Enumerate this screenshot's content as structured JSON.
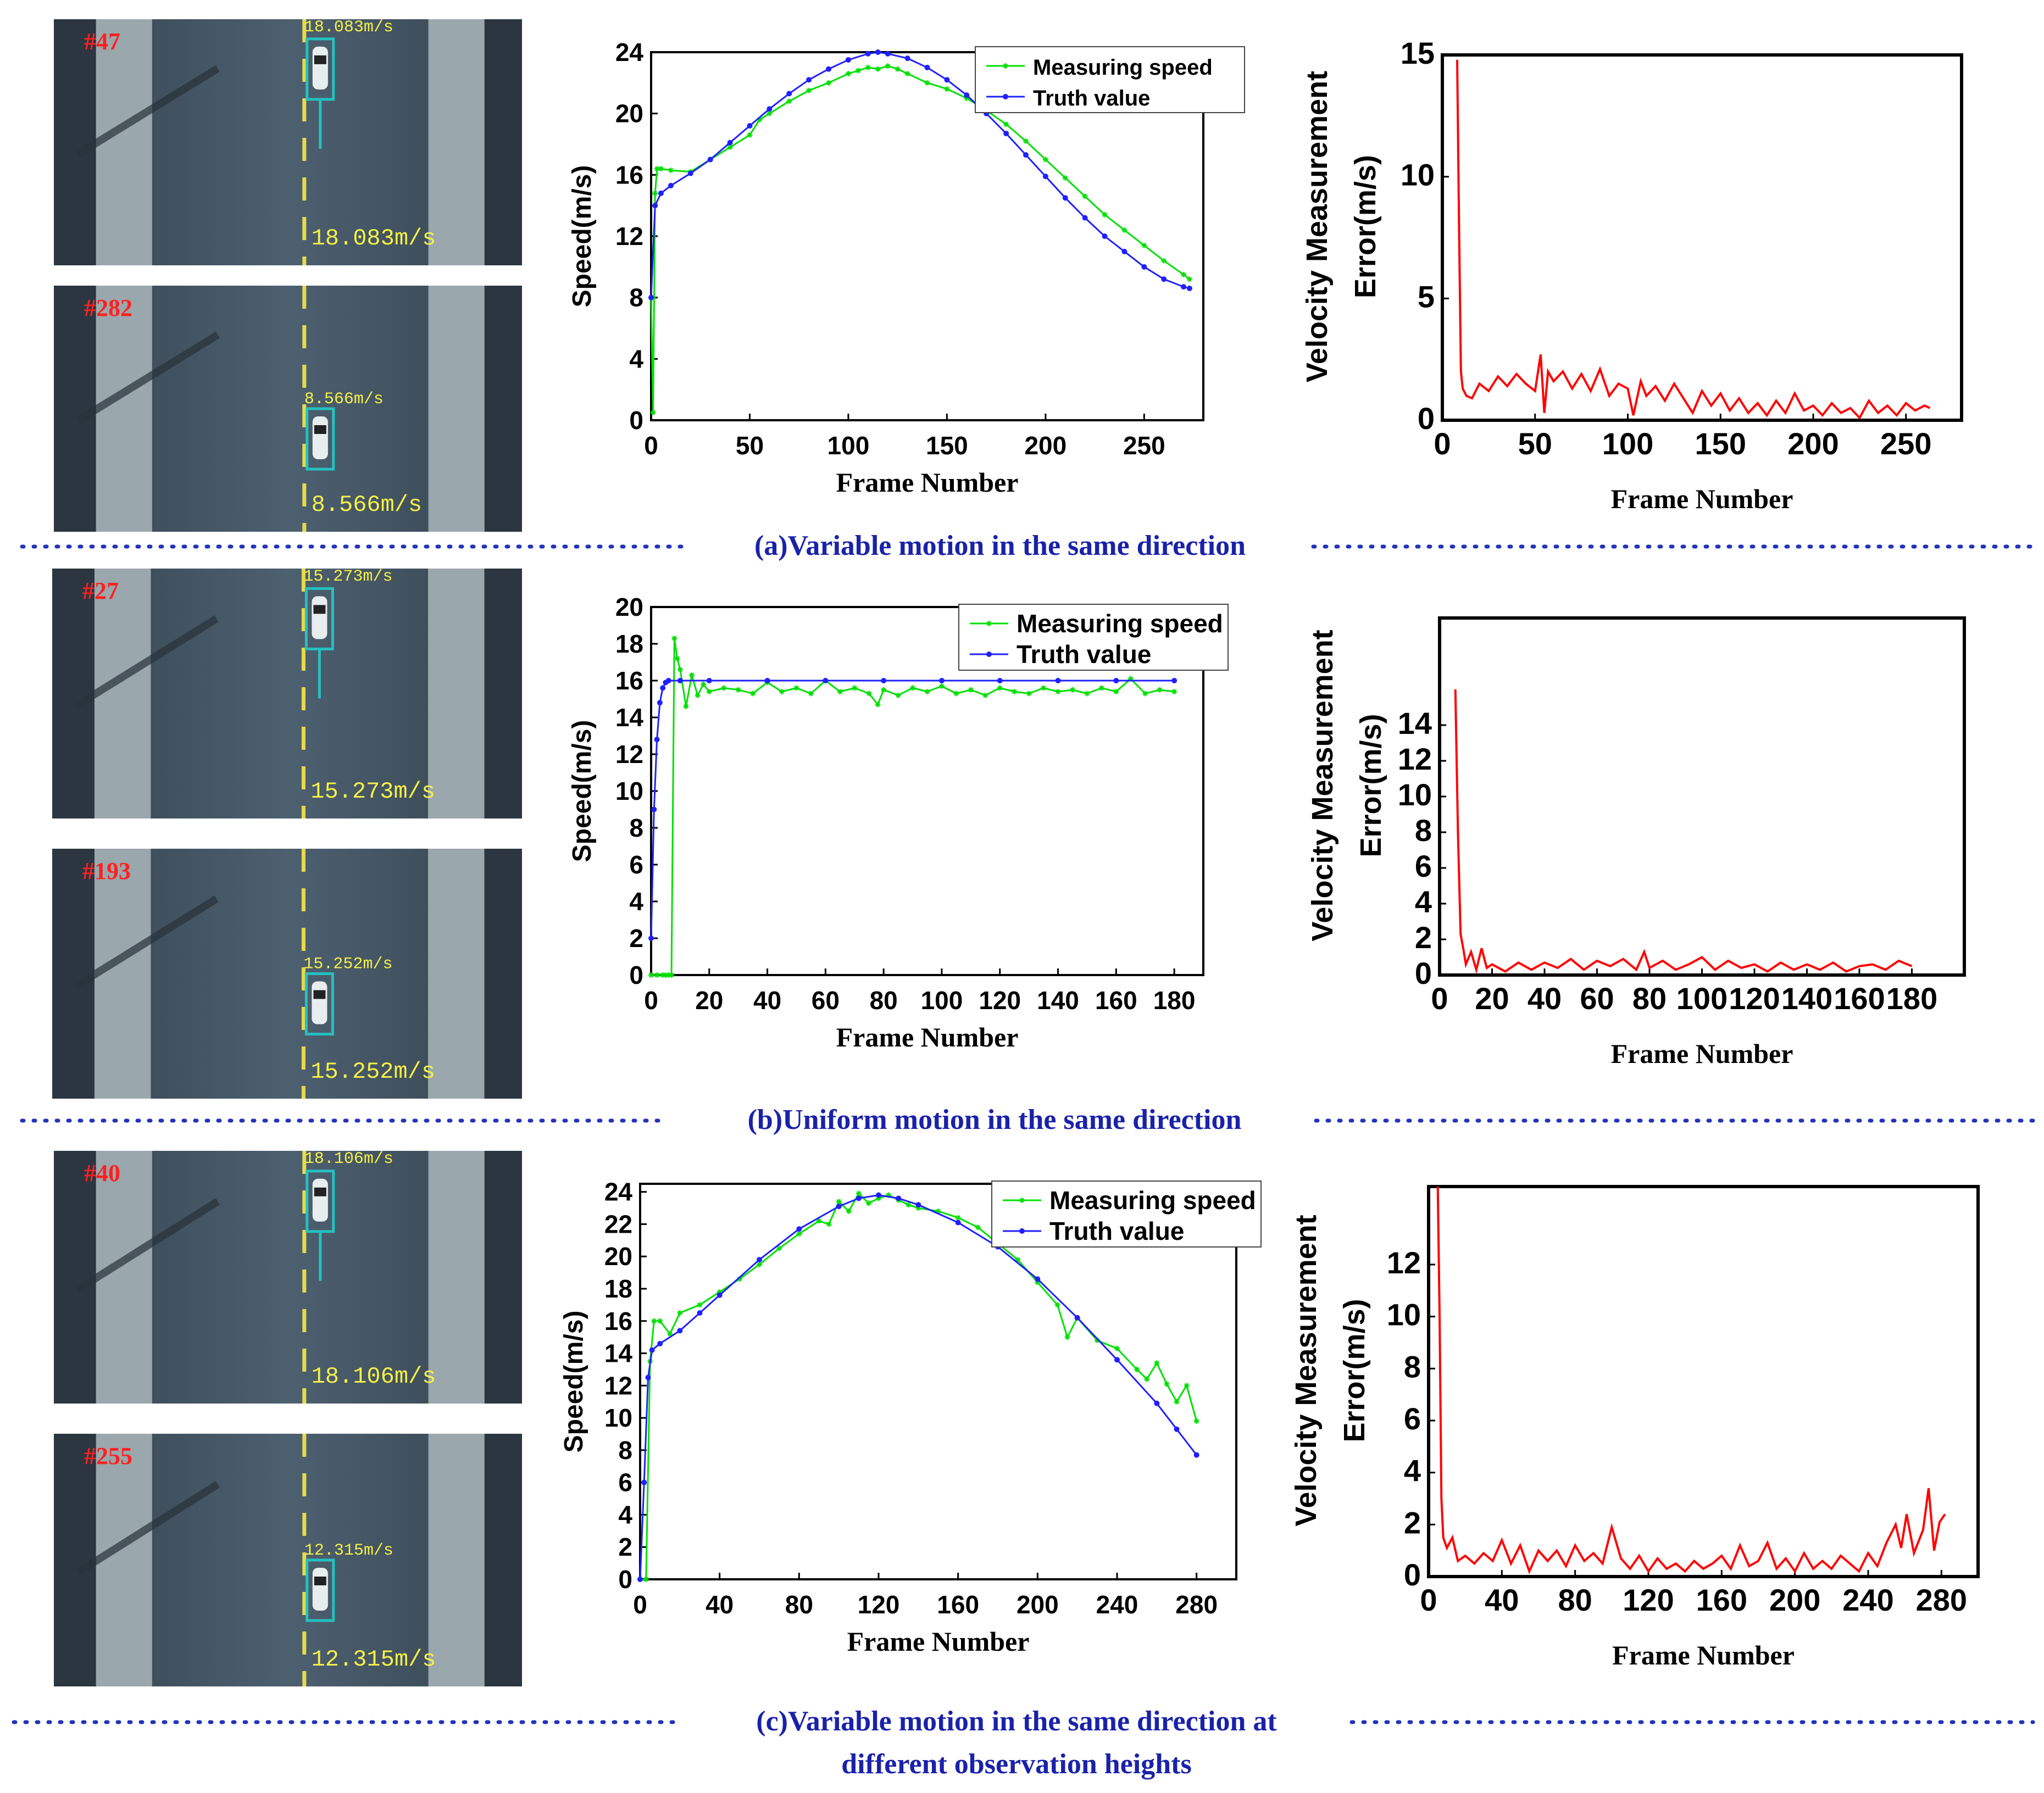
{
  "rows": [
    {
      "caption": "(a)Variable motion in the same direction",
      "photos": [
        {
          "frame": "#47",
          "top_speed": "18.083m/s",
          "bottom_speed": "18.083m/s"
        },
        {
          "frame": "#282",
          "top_speed": "8.566m/s",
          "bottom_speed": "8.566m/s"
        }
      ]
    },
    {
      "caption": "(b)Uniform  motion in the same direction",
      "photos": [
        {
          "frame": "#27",
          "top_speed": "15.273m/s",
          "bottom_speed": "15.273m/s"
        },
        {
          "frame": "#193",
          "top_speed": "15.252m/s",
          "bottom_speed": "15.252m/s"
        }
      ]
    },
    {
      "caption": "(c)Variable motion in the same direction at different observation heights",
      "photos": [
        {
          "frame": "#40",
          "top_speed": "18.106m/s",
          "bottom_speed": "18.106m/s"
        },
        {
          "frame": "#255",
          "top_speed": "12.315m/s",
          "bottom_speed": "12.315m/s"
        }
      ]
    }
  ],
  "chart_data": [
    {
      "id": "a-speed",
      "type": "line",
      "xlabel": "Frame Number",
      "ylabel": "Speed(m/s)",
      "xlim": [
        0,
        280
      ],
      "ylim": [
        0,
        24
      ],
      "xticks": [
        0,
        50,
        100,
        150,
        200,
        250
      ],
      "yticks": [
        0,
        4,
        8,
        12,
        16,
        20,
        24
      ],
      "legend": {
        "position": "top-right",
        "entries": [
          "Measuring speed",
          "Truth value"
        ]
      },
      "series": [
        {
          "name": "Measuring speed",
          "color": "#00e000",
          "marker": "star",
          "x": [
            0,
            1,
            2,
            3,
            5,
            10,
            20,
            30,
            40,
            50,
            55,
            60,
            70,
            80,
            90,
            100,
            105,
            110,
            115,
            120,
            125,
            130,
            140,
            150,
            160,
            170,
            180,
            190,
            200,
            210,
            220,
            230,
            240,
            250,
            260,
            270,
            273
          ],
          "y": [
            8,
            0.5,
            14.8,
            16.4,
            16.4,
            16.3,
            16.2,
            17.0,
            17.8,
            18.6,
            19.6,
            20.0,
            20.8,
            21.5,
            22.0,
            22.6,
            22.8,
            23.0,
            22.9,
            23.1,
            22.9,
            22.6,
            22.0,
            21.6,
            21.0,
            20.2,
            19.3,
            18.2,
            17.0,
            15.8,
            14.6,
            13.4,
            12.4,
            11.4,
            10.4,
            9.5,
            9.2
          ]
        },
        {
          "name": "Truth value",
          "color": "#2020ff",
          "marker": "dot",
          "x": [
            0,
            2,
            5,
            10,
            20,
            30,
            40,
            50,
            60,
            70,
            80,
            90,
            100,
            110,
            115,
            120,
            130,
            140,
            150,
            160,
            170,
            180,
            190,
            200,
            210,
            220,
            230,
            240,
            250,
            260,
            270,
            273
          ],
          "y": [
            8.0,
            14.0,
            14.8,
            15.3,
            16.1,
            17.0,
            18.1,
            19.2,
            20.3,
            21.3,
            22.2,
            22.9,
            23.5,
            23.9,
            24.0,
            23.9,
            23.6,
            23.0,
            22.2,
            21.2,
            20.0,
            18.7,
            17.3,
            15.9,
            14.5,
            13.2,
            12.0,
            11.0,
            10.0,
            9.2,
            8.7,
            8.6
          ]
        }
      ]
    },
    {
      "id": "a-error",
      "type": "line",
      "xlabel": "Frame Number",
      "ylabel": "Velocity Measurement Error(m/s)",
      "xlim": [
        0,
        280
      ],
      "ylim": [
        0,
        15
      ],
      "xticks": [
        0,
        50,
        100,
        150,
        200,
        250
      ],
      "yticks": [
        0,
        5,
        10,
        15
      ],
      "series": [
        {
          "name": "Error",
          "color": "#ff0000",
          "x": [
            8,
            9,
            10,
            11,
            13,
            16,
            20,
            25,
            30,
            35,
            40,
            45,
            50,
            53,
            55,
            57,
            60,
            65,
            70,
            75,
            80,
            85,
            90,
            95,
            100,
            103,
            107,
            110,
            115,
            120,
            125,
            130,
            135,
            140,
            145,
            150,
            155,
            160,
            165,
            170,
            175,
            180,
            185,
            190,
            195,
            200,
            205,
            210,
            215,
            220,
            225,
            230,
            235,
            240,
            245,
            250,
            255,
            260,
            263
          ],
          "y": [
            14.8,
            8,
            2,
            1.3,
            1.0,
            0.9,
            1.5,
            1.2,
            1.8,
            1.4,
            1.9,
            1.5,
            1.2,
            2.7,
            0.3,
            2.0,
            1.6,
            2.0,
            1.3,
            1.9,
            1.2,
            2.1,
            1.0,
            1.5,
            1.3,
            0.2,
            1.6,
            1.0,
            1.4,
            0.8,
            1.5,
            0.9,
            0.3,
            1.2,
            0.6,
            1.1,
            0.4,
            0.9,
            0.3,
            0.7,
            0.2,
            0.8,
            0.3,
            1.1,
            0.4,
            0.6,
            0.2,
            0.7,
            0.3,
            0.5,
            0.1,
            0.8,
            0.3,
            0.6,
            0.2,
            0.7,
            0.4,
            0.6,
            0.5
          ]
        }
      ]
    },
    {
      "id": "b-speed",
      "type": "line",
      "xlabel": "Frame Number",
      "ylabel": "Speed(m/s)",
      "xlim": [
        0,
        190
      ],
      "ylim": [
        0,
        20
      ],
      "xticks": [
        0,
        20,
        40,
        60,
        80,
        100,
        120,
        140,
        160,
        180
      ],
      "yticks": [
        0,
        2,
        4,
        6,
        8,
        10,
        12,
        14,
        16,
        18,
        20
      ],
      "legend": {
        "position": "top-right",
        "entries": [
          "Measuring speed",
          "Truth value"
        ]
      },
      "series": [
        {
          "name": "Measuring speed",
          "color": "#00e000",
          "marker": "star",
          "x": [
            0,
            2,
            4,
            5,
            6,
            7,
            8,
            9,
            10,
            12,
            14,
            16,
            18,
            20,
            25,
            30,
            35,
            40,
            45,
            50,
            55,
            60,
            65,
            70,
            75,
            78,
            80,
            85,
            90,
            95,
            100,
            105,
            110,
            115,
            120,
            125,
            130,
            135,
            140,
            145,
            150,
            155,
            160,
            165,
            170,
            175,
            180
          ],
          "y": [
            0,
            0,
            0,
            0,
            0,
            0,
            18.3,
            17.2,
            16.6,
            14.6,
            16.3,
            15.2,
            15.8,
            15.4,
            15.6,
            15.5,
            15.3,
            15.9,
            15.4,
            15.6,
            15.3,
            16.0,
            15.4,
            15.6,
            15.3,
            14.7,
            15.5,
            15.2,
            15.6,
            15.4,
            15.7,
            15.3,
            15.5,
            15.2,
            15.6,
            15.4,
            15.3,
            15.6,
            15.4,
            15.5,
            15.3,
            15.6,
            15.4,
            16.1,
            15.3,
            15.5,
            15.4
          ]
        },
        {
          "name": "Truth value",
          "color": "#2020ff",
          "marker": "dot",
          "x": [
            0,
            1,
            2,
            3,
            4,
            5,
            6,
            10,
            20,
            40,
            60,
            80,
            100,
            120,
            140,
            160,
            180
          ],
          "y": [
            2,
            9,
            12.8,
            14.8,
            15.6,
            15.9,
            16.0,
            16.0,
            16.0,
            16.0,
            16.0,
            16.0,
            16.0,
            16.0,
            16.0,
            16.0,
            16.0
          ]
        }
      ]
    },
    {
      "id": "b-error",
      "type": "line",
      "xlabel": "Frame Number",
      "ylabel": "Velocity Measurement Error(m/s)",
      "xlim": [
        0,
        200
      ],
      "ylim": [
        0,
        20
      ],
      "xticks": [
        0,
        20,
        40,
        60,
        80,
        100,
        120,
        140,
        160,
        180
      ],
      "yticks": [
        0,
        2,
        4,
        6,
        8,
        10,
        12,
        14
      ],
      "series": [
        {
          "name": "Error",
          "color": "#ff0000",
          "x": [
            6,
            7,
            8,
            9,
            10,
            12,
            14,
            16,
            18,
            20,
            25,
            30,
            35,
            40,
            45,
            50,
            55,
            60,
            65,
            70,
            75,
            78,
            80,
            85,
            90,
            95,
            100,
            105,
            110,
            115,
            120,
            125,
            130,
            135,
            140,
            145,
            150,
            155,
            160,
            165,
            170,
            175,
            180
          ],
          "y": [
            16,
            8,
            2.3,
            1.5,
            0.6,
            1.3,
            0.3,
            1.5,
            0.4,
            0.6,
            0.2,
            0.7,
            0.3,
            0.7,
            0.4,
            0.9,
            0.3,
            0.8,
            0.5,
            0.9,
            0.3,
            1.3,
            0.4,
            0.8,
            0.3,
            0.6,
            1.0,
            0.3,
            0.8,
            0.4,
            0.6,
            0.2,
            0.7,
            0.3,
            0.6,
            0.3,
            0.7,
            0.2,
            0.5,
            0.6,
            0.3,
            0.8,
            0.5
          ]
        }
      ]
    },
    {
      "id": "c-speed",
      "type": "line",
      "xlabel": "Frame Number",
      "ylabel": "Speed(m/s)",
      "xlim": [
        0,
        300
      ],
      "ylim": [
        0,
        24.5
      ],
      "xticks": [
        0,
        40,
        80,
        120,
        160,
        200,
        240,
        280
      ],
      "yticks": [
        0,
        2,
        4,
        6,
        8,
        10,
        12,
        14,
        16,
        18,
        20,
        22,
        24
      ],
      "legend": {
        "position": "top-right",
        "entries": [
          "Measuring speed",
          "Truth value"
        ]
      },
      "series": [
        {
          "name": "Measuring speed",
          "color": "#00e000",
          "marker": "star",
          "x": [
            0,
            3,
            5,
            7,
            10,
            15,
            20,
            30,
            40,
            50,
            60,
            70,
            80,
            90,
            95,
            100,
            105,
            110,
            115,
            120,
            125,
            130,
            135,
            140,
            150,
            160,
            170,
            180,
            190,
            200,
            210,
            215,
            220,
            230,
            240,
            250,
            255,
            260,
            265,
            270,
            275,
            280
          ],
          "y": [
            0,
            0,
            13.5,
            16.0,
            16.0,
            15.2,
            16.5,
            17.0,
            17.8,
            18.6,
            19.5,
            20.5,
            21.4,
            22.2,
            22.0,
            23.4,
            22.8,
            23.9,
            23.3,
            23.6,
            23.8,
            23.5,
            23.2,
            23.0,
            22.8,
            22.4,
            21.8,
            20.8,
            19.8,
            18.4,
            17.0,
            15.0,
            16.2,
            14.8,
            14.3,
            13.0,
            12.4,
            13.4,
            12.1,
            11.0,
            12.0,
            9.8
          ]
        },
        {
          "name": "Truth value",
          "color": "#2020ff",
          "marker": "dot",
          "x": [
            0,
            2,
            4,
            6,
            10,
            20,
            30,
            40,
            60,
            80,
            100,
            110,
            120,
            130,
            140,
            160,
            180,
            200,
            220,
            240,
            260,
            270,
            280
          ],
          "y": [
            0,
            6,
            12.5,
            14.2,
            14.6,
            15.4,
            16.5,
            17.6,
            19.8,
            21.7,
            23.1,
            23.6,
            23.8,
            23.6,
            23.2,
            22.1,
            20.6,
            18.6,
            16.2,
            13.6,
            10.9,
            9.3,
            7.7
          ]
        }
      ]
    },
    {
      "id": "c-error",
      "type": "line",
      "xlabel": "Frame Number",
      "ylabel": "Velocity Measurement Error(m/s)",
      "xlim": [
        0,
        300
      ],
      "ylim": [
        0,
        15
      ],
      "xticks": [
        0,
        40,
        80,
        120,
        160,
        200,
        240,
        280
      ],
      "yticks": [
        0,
        2,
        4,
        6,
        8,
        10,
        12
      ],
      "series": [
        {
          "name": "Error",
          "color": "#ff0000",
          "x": [
            5,
            6,
            7,
            8,
            10,
            13,
            16,
            20,
            25,
            30,
            35,
            40,
            45,
            50,
            55,
            60,
            65,
            70,
            75,
            80,
            85,
            90,
            95,
            100,
            105,
            110,
            115,
            120,
            125,
            130,
            135,
            140,
            145,
            150,
            155,
            160,
            165,
            170,
            175,
            180,
            185,
            190,
            195,
            200,
            205,
            210,
            215,
            220,
            225,
            230,
            235,
            240,
            245,
            250,
            255,
            258,
            261,
            265,
            270,
            273,
            276,
            279,
            282
          ],
          "y": [
            15,
            10,
            3,
            1.5,
            1.1,
            1.5,
            0.6,
            0.8,
            0.5,
            0.9,
            0.6,
            1.4,
            0.5,
            1.2,
            0.2,
            1.0,
            0.6,
            1.0,
            0.4,
            1.2,
            0.6,
            0.9,
            0.5,
            1.9,
            0.7,
            0.3,
            0.8,
            0.2,
            0.7,
            0.3,
            0.5,
            0.2,
            0.6,
            0.3,
            0.5,
            0.8,
            0.3,
            1.2,
            0.4,
            0.6,
            1.3,
            0.3,
            0.7,
            0.2,
            0.9,
            0.3,
            0.6,
            0.3,
            0.8,
            0.5,
            0.2,
            0.9,
            0.4,
            1.3,
            2.0,
            1.1,
            2.4,
            0.9,
            1.8,
            3.4,
            1.0,
            2.1,
            2.4
          ]
        }
      ]
    }
  ]
}
